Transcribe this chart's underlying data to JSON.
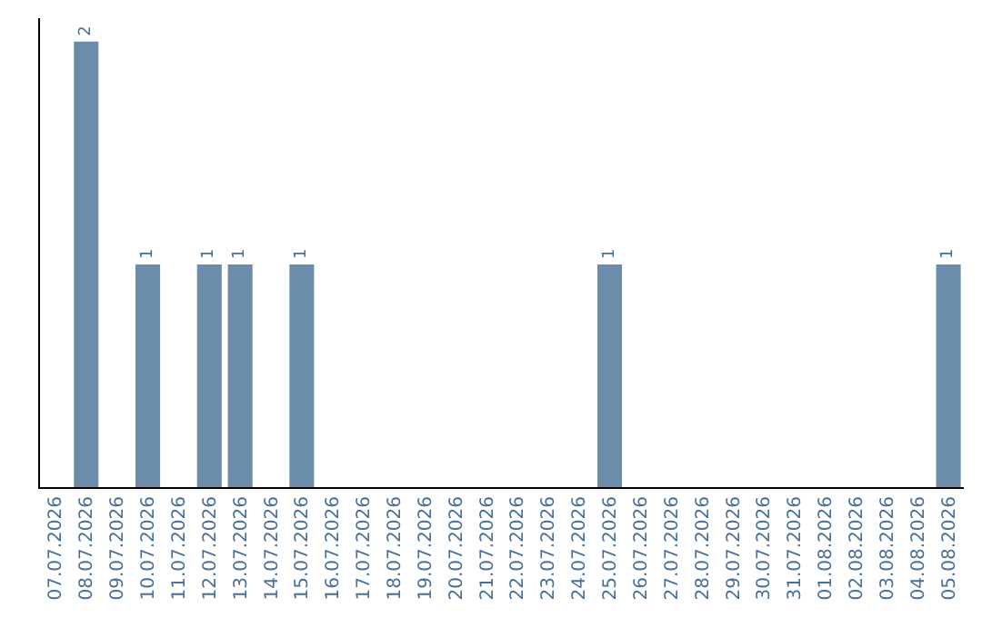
{
  "chart_data": {
    "type": "bar",
    "categories": [
      "07.07.2026",
      "08.07.2026",
      "09.07.2026",
      "10.07.2026",
      "11.07.2026",
      "12.07.2026",
      "13.07.2026",
      "14.07.2026",
      "15.07.2026",
      "16.07.2026",
      "17.07.2026",
      "18.07.2026",
      "19.07.2026",
      "20.07.2026",
      "21.07.2026",
      "22.07.2026",
      "23.07.2026",
      "24.07.2026",
      "25.07.2026",
      "26.07.2026",
      "27.07.2026",
      "28.07.2026",
      "29.07.2026",
      "30.07.2026",
      "31.07.2026",
      "01.08.2026",
      "02.08.2026",
      "03.08.2026",
      "04.08.2026",
      "05.08.2026"
    ],
    "values": [
      0,
      2,
      0,
      1,
      0,
      1,
      1,
      0,
      1,
      0,
      0,
      0,
      0,
      0,
      0,
      0,
      0,
      0,
      1,
      0,
      0,
      0,
      0,
      0,
      0,
      0,
      0,
      0,
      0,
      1
    ],
    "value_labels": [
      null,
      "2",
      null,
      "1",
      null,
      "1",
      "1",
      null,
      "1",
      null,
      null,
      null,
      null,
      null,
      null,
      null,
      null,
      null,
      "1",
      null,
      null,
      null,
      null,
      null,
      null,
      null,
      null,
      null,
      null,
      "1"
    ],
    "color": "#6b8caa",
    "tick_labels": "x"
  }
}
